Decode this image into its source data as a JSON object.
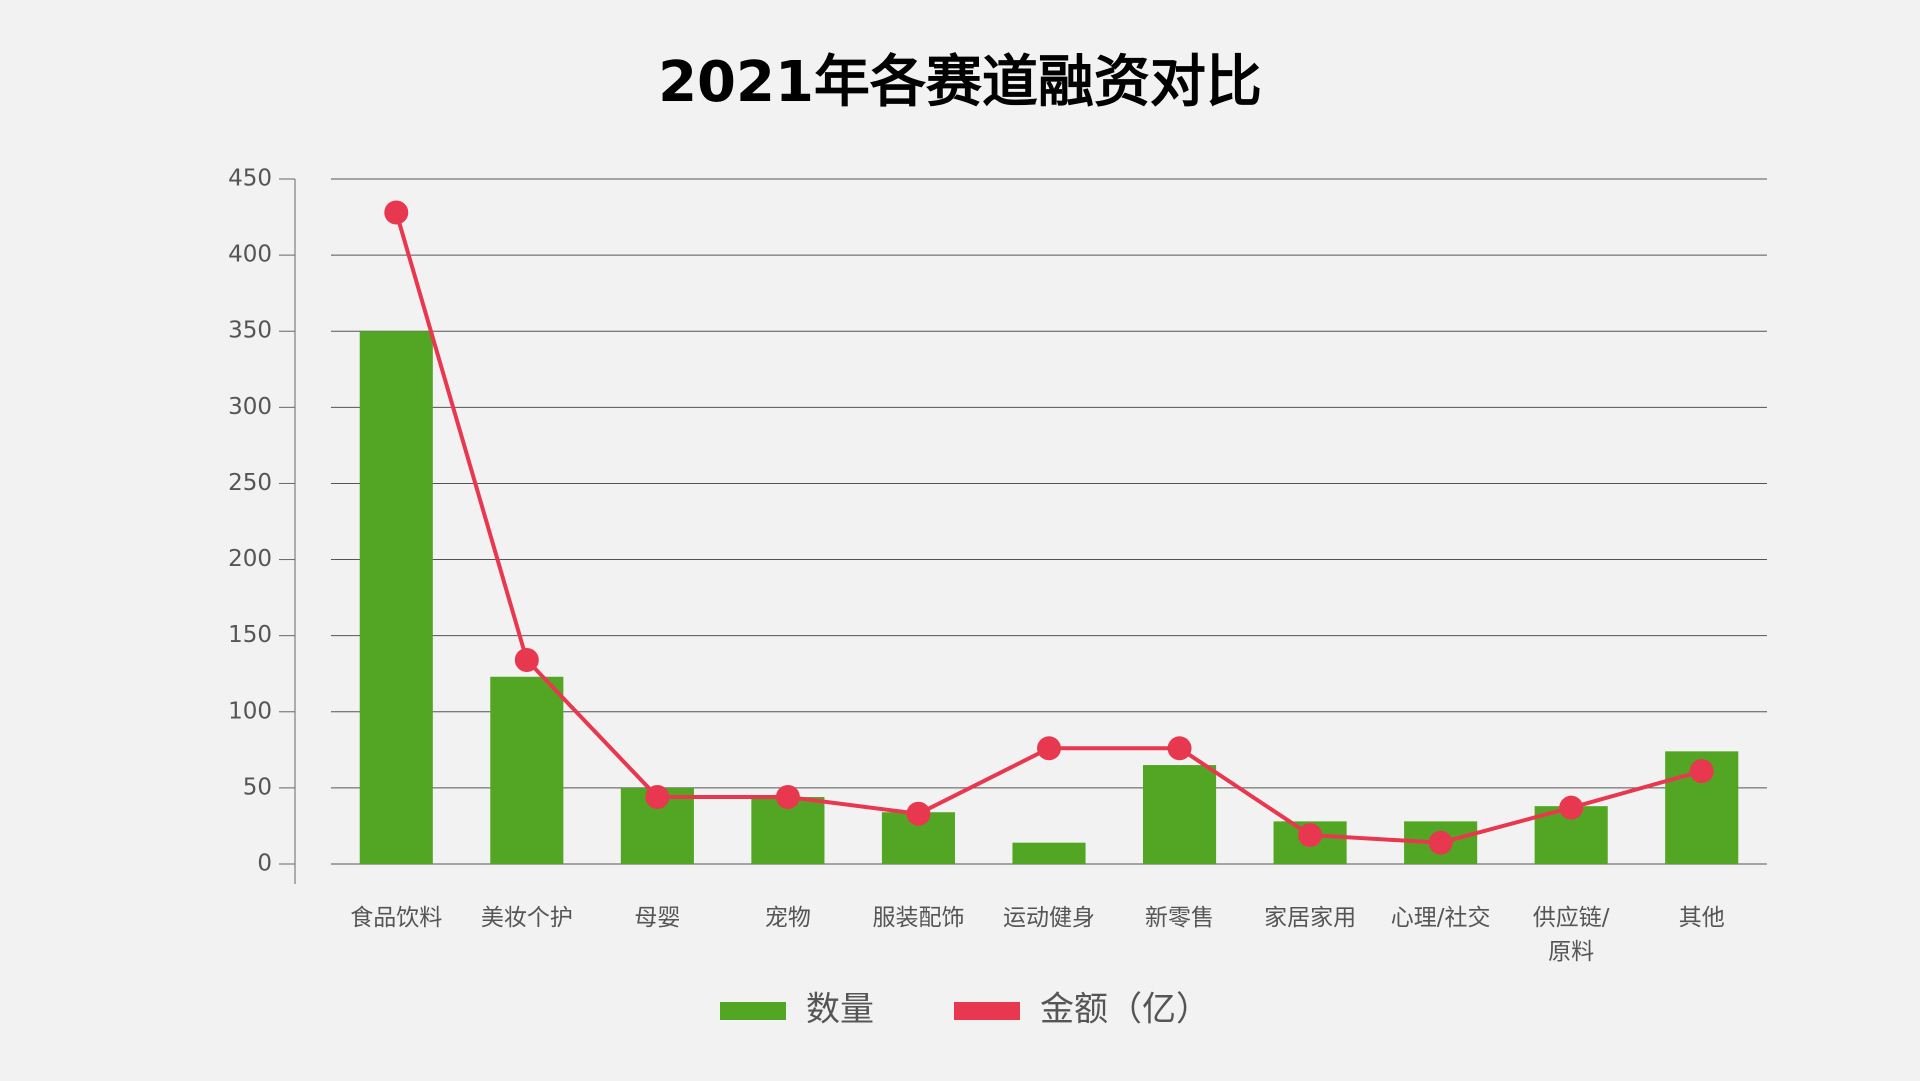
{
  "chart_data": {
    "type": "bar",
    "title": "2021年各赛道融资对比",
    "categories": [
      "食品饮料",
      "美妆个护",
      "母婴",
      "宠物",
      "服装配饰",
      "运动健身",
      "新零售",
      "家居家用",
      "心理/社交",
      "供应链/\n原料",
      "其他"
    ],
    "series": [
      {
        "name": "数量",
        "type": "bar",
        "color": "#52a623",
        "values": [
          350,
          123,
          50,
          44,
          34,
          14,
          65,
          28,
          28,
          38,
          74
        ]
      },
      {
        "name": "金额（亿）",
        "type": "line",
        "color": "#e8384f",
        "values": [
          428,
          134,
          44,
          44,
          33,
          76,
          76,
          19,
          14,
          37,
          61
        ]
      }
    ],
    "ylim": [
      0,
      450
    ],
    "yticks": [
      0,
      50,
      100,
      150,
      200,
      250,
      300,
      350,
      400,
      450
    ],
    "grid": true,
    "legend": "bottom"
  }
}
